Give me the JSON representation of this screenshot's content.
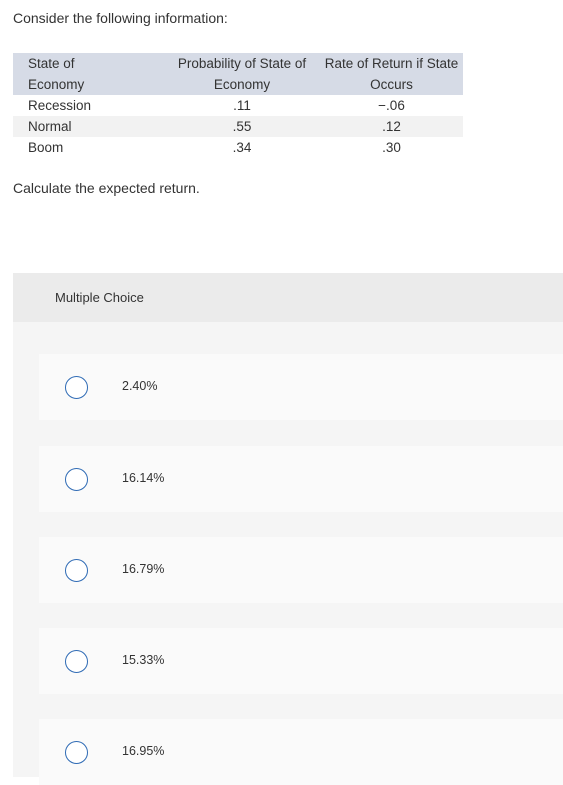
{
  "question": {
    "prompt": "Consider the following information:",
    "instruction": "Calculate the expected return."
  },
  "table": {
    "headers": [
      [
        "State of",
        "Economy"
      ],
      [
        "Probability of State of",
        "Economy"
      ],
      [
        "Rate of Return if State",
        "Occurs"
      ]
    ],
    "rows": [
      {
        "state": "Recession",
        "probability": ".11",
        "rate": "−.06"
      },
      {
        "state": "Normal",
        "probability": ".55",
        "rate": ".12"
      },
      {
        "state": "Boom",
        "probability": ".34",
        "rate": ".30"
      }
    ]
  },
  "multiple_choice": {
    "title": "Multiple Choice",
    "options": [
      "2.40%",
      "16.14%",
      "16.79%",
      "15.33%",
      "16.95%"
    ],
    "accent_color": "#2f6bb5"
  }
}
